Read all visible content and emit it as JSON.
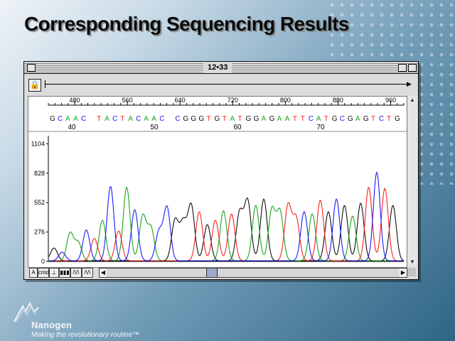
{
  "slide": {
    "title": "Corresponding Sequencing Results"
  },
  "window": {
    "title": "12•33",
    "position_ticks": [
      "480",
      "560",
      "640",
      "720",
      "800",
      "880",
      "960"
    ],
    "sequence": "GCAAC TACTACAAC CGGGTGTATGGAGAATTCATGCGAGTCTG",
    "base_numbers": [
      "40",
      "50",
      "60",
      "70"
    ],
    "y_ticks": [
      "1104",
      "828",
      "552",
      "276",
      "0"
    ],
    "bottom_buttons": [
      "A",
      "cmd",
      "⊥",
      "▮▮▮",
      "/\\/\\",
      "/\\/\\"
    ]
  },
  "chart_data": {
    "type": "line",
    "title": "",
    "xlabel": "",
    "ylabel": "",
    "ylim": [
      0,
      1180
    ],
    "x_ticks": [
      480,
      560,
      640,
      720,
      800,
      880,
      960
    ],
    "base_calls": "GCAAC TACTACAAC CGGGTGTATGGAGAATTCATGCGAGTCTG",
    "base_positions": [
      40,
      50,
      60,
      70
    ],
    "series_colors": {
      "A": "#1aa71a",
      "C": "#1a1aff",
      "G": "#111111",
      "T": "#ff2020"
    },
    "peak_heights": [
      120,
      80,
      260,
      170,
      290,
      210,
      380,
      700,
      280,
      690,
      480,
      420,
      310,
      270,
      500,
      380,
      350,
      520,
      460,
      340,
      380,
      470,
      440,
      450,
      560,
      520,
      580,
      480,
      460,
      520,
      400,
      460,
      440,
      570,
      460,
      580,
      520,
      420,
      540,
      690,
      830,
      680,
      520,
      470,
      520,
      410,
      500,
      470
    ]
  },
  "footer": {
    "brand": "Nanogen",
    "tagline": "Making the revolutionary routine™"
  }
}
